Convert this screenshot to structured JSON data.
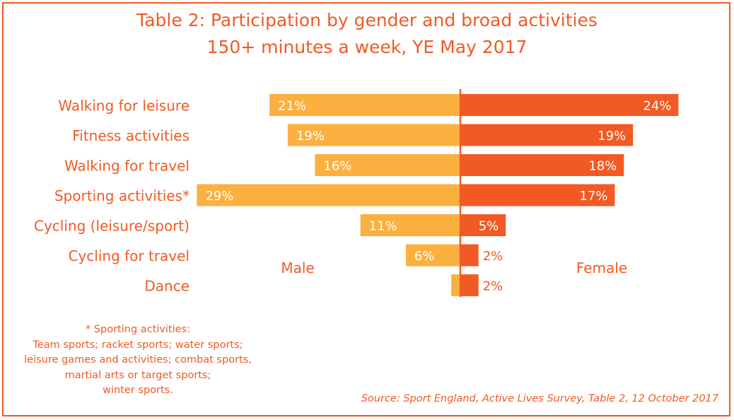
{
  "title_line1": "Table 2: Participation by gender and broad activities",
  "title_line2": "150+ minutes a week, YE May 2017",
  "colors": {
    "male": "#fbb040",
    "female": "#f15a24",
    "text": "#f15a24",
    "axis": "#f15a24"
  },
  "footnote": [
    "* Sporting activities:",
    "Team sports; racket sports; water sports;",
    "leisure games and activities; combat sports,",
    "martial arts or target sports;",
    "winter sports."
  ],
  "source": "Source: Sport England, Active Lives Survey, Table 2, 12 October 2017",
  "chart_data": {
    "type": "bar",
    "orientation": "horizontal-diverging",
    "categories": [
      "Walking for leisure",
      "Fitness activities",
      "Walking for travel",
      "Sporting activities*",
      "Cycling (leisure/sport)",
      "Cycling for travel",
      "Dance"
    ],
    "series": [
      {
        "name": "Male",
        "values": [
          21,
          19,
          16,
          29,
          11,
          6,
          1
        ],
        "labels": [
          "21%",
          "19%",
          "16%",
          "29%",
          "11%",
          "6%",
          ""
        ]
      },
      {
        "name": "Female",
        "values": [
          24,
          19,
          18,
          17,
          5,
          2,
          2
        ],
        "labels": [
          "24%",
          "19%",
          "18%",
          "17%",
          "5%",
          "2%",
          "2%"
        ]
      }
    ],
    "units": "%"
  }
}
